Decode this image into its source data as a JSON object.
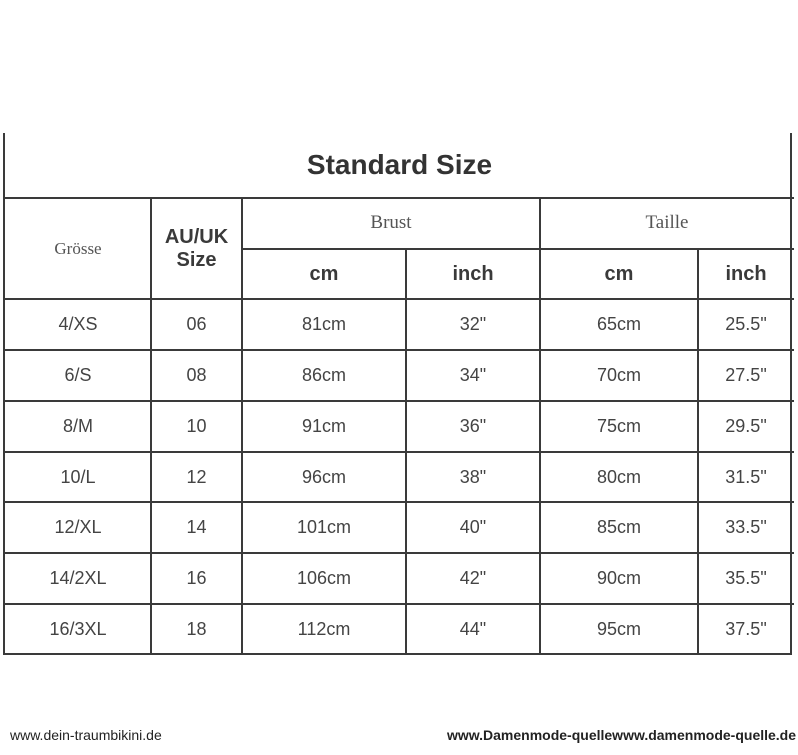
{
  "title": "Standard Size",
  "headers": {
    "groesse": "Grösse",
    "au_uk": "AU/UK",
    "size": "Size",
    "brust": "Brust",
    "taille": "Taille",
    "cm": "cm",
    "inch": "inch"
  },
  "rows": [
    [
      "4/XS",
      "06",
      "81cm",
      "32\"",
      "65cm",
      "25.5\""
    ],
    [
      "6/S",
      "08",
      "86cm",
      "34\"",
      "70cm",
      "27.5\""
    ],
    [
      "8/M",
      "10",
      "91cm",
      "36\"",
      "75cm",
      "29.5\""
    ],
    [
      "10/L",
      "12",
      "96cm",
      "38\"",
      "80cm",
      "31.5\""
    ],
    [
      "12/XL",
      "14",
      "101cm",
      "40\"",
      "85cm",
      "33.5\""
    ],
    [
      "14/2XL",
      "16",
      "106cm",
      "42\"",
      "90cm",
      "35.5\""
    ],
    [
      "16/3XL",
      "18",
      "112cm",
      "44\"",
      "95cm",
      "37.5\""
    ]
  ],
  "watermarks": {
    "left": "www.dein-traumbikini.de",
    "right": "www.Damenmode-quellewww.damenmode-quelle.de"
  }
}
